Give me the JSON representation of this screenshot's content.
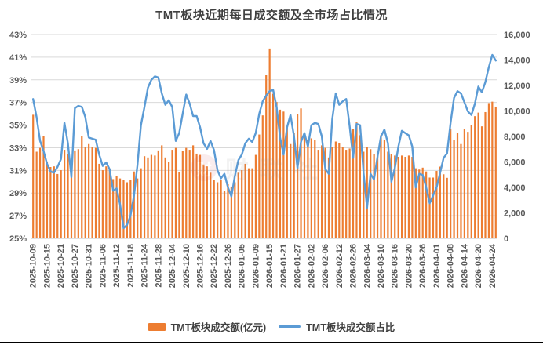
{
  "title": "TMT板块近期每日成交额及全市场占比情况",
  "watermark": {
    "logo_glyph": "财",
    "text": "财联社"
  },
  "colors": {
    "bar": "#ED7D31",
    "line": "#5B9BD5",
    "gridline": "#D9D9D9",
    "axis_line": "#BFBFBF",
    "tick_text": "#595959",
    "title_text": "#3F3F3F"
  },
  "legend": [
    {
      "label": "TMT板块成交额(亿元)",
      "type": "bar",
      "color": "#ED7D31"
    },
    {
      "label": "TMT板块成交额占比",
      "type": "line",
      "color": "#5B9BD5"
    }
  ],
  "chart_data": {
    "type": "combo",
    "title": "TMT板块近期每日成交额及全市场占比情况",
    "grid": true,
    "legend_position": "bottom",
    "label_interval": 4,
    "x_tick_labels": [
      "2025-10-09",
      "2025-10-15",
      "2025-10-21",
      "2025-10-27",
      "2025-10-31",
      "2025-11-06",
      "2025-11-12",
      "2025-11-18",
      "2025-11-24",
      "2025-11-28",
      "2025-12-04",
      "2025-12-10",
      "2025-12-16",
      "2025-12-22",
      "2025-12-26",
      "2026-01-05",
      "2026-01-09",
      "2026-01-15",
      "2026-01-21",
      "2026-01-27",
      "2026-02-02",
      "2026-02-06",
      "2026-02-12",
      "2026-02-26",
      "2026-03-04",
      "2026-03-10",
      "2026-03-16",
      "2026-03-20",
      "2026-03-26",
      "2026-04-01",
      "2026-04-08",
      "2026-04-14",
      "2026-04-20",
      "2026-04-24"
    ],
    "left_axis": {
      "unit": "%",
      "min": 25,
      "max": 43,
      "tick_labels": [
        "43%",
        "41%",
        "39%",
        "37%",
        "35%",
        "33%",
        "31%",
        "29%",
        "27%",
        "25%"
      ]
    },
    "right_axis": {
      "min": 0,
      "max": 16000,
      "tick_labels": [
        "16,000",
        "14,000",
        "12,000",
        "10,000",
        "8,000",
        "6,000",
        "4,000",
        "2,000",
        "0"
      ]
    },
    "series": [
      {
        "name": "TMT板块成交额(亿元)",
        "type": "bar",
        "axis": "right",
        "color": "#ED7D31",
        "values": [
          9700,
          6800,
          7100,
          8050,
          6000,
          5600,
          5650,
          5050,
          5350,
          6950,
          6650,
          5500,
          6900,
          7000,
          8050,
          7200,
          7400,
          7200,
          7100,
          5850,
          5350,
          5650,
          5450,
          4650,
          4900,
          4700,
          4600,
          4400,
          4600,
          5250,
          4700,
          5500,
          6450,
          6350,
          6550,
          6500,
          6900,
          7300,
          6350,
          6000,
          6950,
          7100,
          5200,
          6850,
          7100,
          6950,
          7300,
          6650,
          6550,
          5800,
          5650,
          5150,
          4600,
          4400,
          4600,
          3750,
          4250,
          4050,
          4400,
          5150,
          5350,
          5850,
          5500,
          5500,
          6550,
          8150,
          9650,
          12800,
          14900,
          11350,
          10700,
          10100,
          9950,
          8800,
          7400,
          8250,
          9750,
          10200,
          8250,
          7700,
          7850,
          7700,
          6950,
          7300,
          7100,
          6350,
          7200,
          7600,
          7500,
          7200,
          6950,
          7050,
          8600,
          9100,
          8100,
          6800,
          7200,
          7000,
          6600,
          6800,
          8100,
          7700,
          6800,
          6600,
          6500,
          6400,
          6500,
          6400,
          6500,
          6400,
          5500,
          5400,
          5550,
          5250,
          4770,
          4770,
          5290,
          5630,
          5030,
          4750,
          8620,
          7720,
          8300,
          7400,
          8580,
          8360,
          8900,
          9590,
          9870,
          8790,
          9910,
          10620,
          10730,
          10340
        ]
      },
      {
        "name": "TMT板块成交额占比",
        "type": "line",
        "axis": "left",
        "unit": "%",
        "color": "#5B9BD5",
        "values": [
          37.3,
          35.7,
          33.6,
          32.7,
          31.6,
          30.9,
          30.8,
          31.3,
          32.0,
          35.2,
          33.4,
          30.4,
          36.5,
          36.7,
          36.6,
          35.7,
          33.9,
          33.8,
          33.7,
          32.4,
          31.4,
          31.7,
          31.1,
          29.2,
          29.4,
          28.0,
          25.9,
          26.2,
          27.0,
          28.8,
          31.5,
          35.0,
          36.6,
          38.3,
          39.0,
          39.3,
          39.2,
          37.8,
          36.8,
          37.2,
          36.6,
          33.6,
          34.3,
          36.0,
          37.7,
          36.9,
          35.8,
          35.8,
          34.8,
          33.4,
          32.9,
          33.6,
          32.8,
          31.0,
          30.3,
          30.7,
          29.5,
          28.7,
          30.5,
          31.9,
          32.4,
          33.4,
          33.8,
          33.5,
          34.3,
          36.0,
          37.1,
          37.6,
          38.0,
          38.1,
          36.6,
          33.9,
          32.4,
          34.8,
          35.9,
          34.0,
          31.2,
          33.5,
          34.3,
          33.1,
          35.0,
          35.2,
          35.1,
          34.0,
          31.1,
          30.7,
          35.5,
          37.8,
          36.8,
          37.1,
          37.3,
          34.9,
          32.1,
          35.1,
          35.0,
          30.8,
          27.7,
          30.7,
          30.2,
          32.2,
          34.0,
          34.6,
          33.4,
          30.0,
          31.2,
          33.1,
          34.5,
          34.3,
          34.1,
          33.1,
          29.5,
          30.7,
          30.6,
          29.5,
          28.1,
          28.8,
          29.5,
          30.8,
          32.1,
          32.5,
          35.2,
          37.4,
          38.0,
          37.8,
          37.0,
          36.2,
          35.9,
          36.9,
          38.4,
          37.9,
          38.8,
          40.1,
          41.2,
          40.7
        ]
      }
    ]
  }
}
